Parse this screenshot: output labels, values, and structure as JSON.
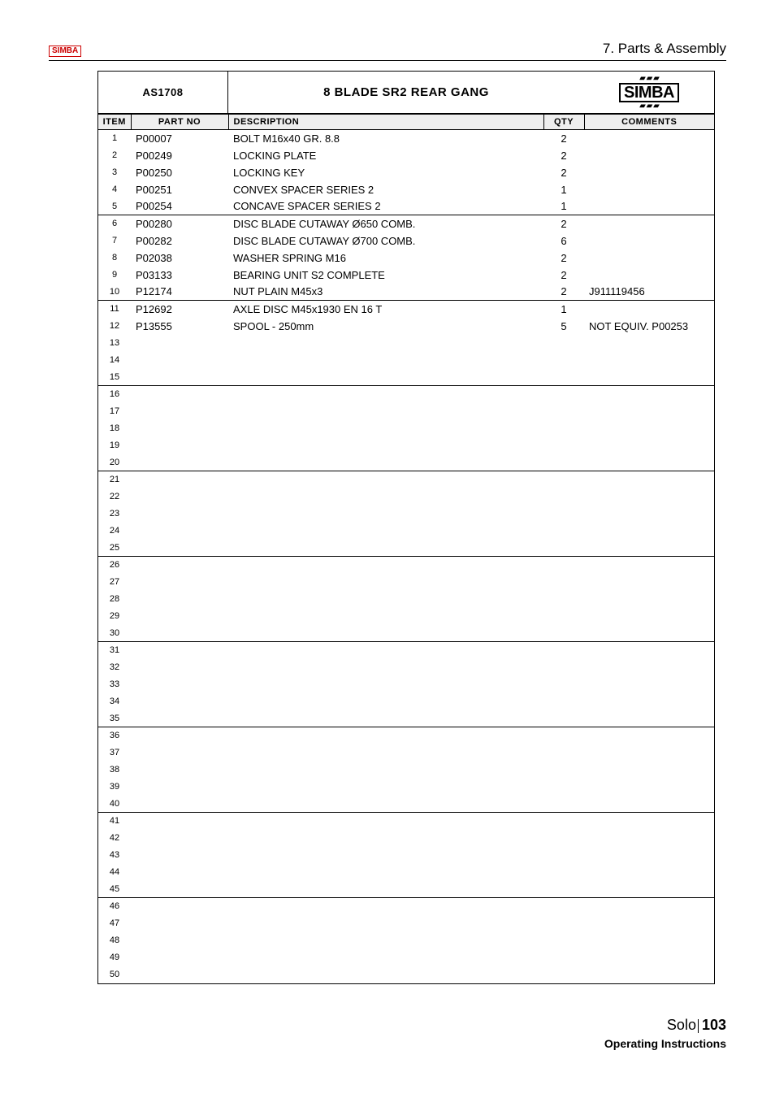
{
  "header": {
    "logo_text": "SIMBA",
    "section": "7. Parts & Assembly"
  },
  "assembly": {
    "code": "AS1708",
    "title": "8 BLADE SR2 REAR GANG",
    "brand": "SIMBA"
  },
  "columns": {
    "item": "ITEM",
    "part": "PART NO",
    "desc": "DESCRIPTION",
    "qty": "QTY",
    "comm": "COMMENTS"
  },
  "rows": [
    {
      "item": "1",
      "part": "P00007",
      "desc": "BOLT M16x40 GR. 8.8",
      "qty": "2",
      "comm": "",
      "sep": false
    },
    {
      "item": "2",
      "part": "P00249",
      "desc": "LOCKING PLATE",
      "qty": "2",
      "comm": "",
      "sep": false
    },
    {
      "item": "3",
      "part": "P00250",
      "desc": "LOCKING KEY",
      "qty": "2",
      "comm": "",
      "sep": false
    },
    {
      "item": "4",
      "part": "P00251",
      "desc": "CONVEX SPACER SERIES 2",
      "qty": "1",
      "comm": "",
      "sep": false
    },
    {
      "item": "5",
      "part": "P00254",
      "desc": "CONCAVE SPACER SERIES 2",
      "qty": "1",
      "comm": "",
      "sep": false
    },
    {
      "item": "6",
      "part": "P00280",
      "desc": "DISC BLADE CUTAWAY Ø650 COMB.",
      "qty": "2",
      "comm": "",
      "sep": true
    },
    {
      "item": "7",
      "part": "P00282",
      "desc": "DISC BLADE CUTAWAY Ø700 COMB.",
      "qty": "6",
      "comm": "",
      "sep": false
    },
    {
      "item": "8",
      "part": "P02038",
      "desc": "WASHER SPRING M16",
      "qty": "2",
      "comm": "",
      "sep": false
    },
    {
      "item": "9",
      "part": "P03133",
      "desc": "BEARING UNIT S2 COMPLETE",
      "qty": "2",
      "comm": "",
      "sep": false
    },
    {
      "item": "10",
      "part": "P12174",
      "desc": "NUT PLAIN M45x3",
      "qty": "2",
      "comm": "J911119456",
      "sep": false
    },
    {
      "item": "11",
      "part": "P12692",
      "desc": "AXLE DISC M45x1930 EN 16 T",
      "qty": "1",
      "comm": "",
      "sep": true
    },
    {
      "item": "12",
      "part": "P13555",
      "desc": "SPOOL - 250mm",
      "qty": "5",
      "comm": "NOT EQUIV. P00253",
      "sep": false
    },
    {
      "item": "13",
      "part": "",
      "desc": "",
      "qty": "",
      "comm": "",
      "sep": false
    },
    {
      "item": "14",
      "part": "",
      "desc": "",
      "qty": "",
      "comm": "",
      "sep": false
    },
    {
      "item": "15",
      "part": "",
      "desc": "",
      "qty": "",
      "comm": "",
      "sep": false
    },
    {
      "item": "16",
      "part": "",
      "desc": "",
      "qty": "",
      "comm": "",
      "sep": true
    },
    {
      "item": "17",
      "part": "",
      "desc": "",
      "qty": "",
      "comm": "",
      "sep": false
    },
    {
      "item": "18",
      "part": "",
      "desc": "",
      "qty": "",
      "comm": "",
      "sep": false
    },
    {
      "item": "19",
      "part": "",
      "desc": "",
      "qty": "",
      "comm": "",
      "sep": false
    },
    {
      "item": "20",
      "part": "",
      "desc": "",
      "qty": "",
      "comm": "",
      "sep": false
    },
    {
      "item": "21",
      "part": "",
      "desc": "",
      "qty": "",
      "comm": "",
      "sep": true
    },
    {
      "item": "22",
      "part": "",
      "desc": "",
      "qty": "",
      "comm": "",
      "sep": false
    },
    {
      "item": "23",
      "part": "",
      "desc": "",
      "qty": "",
      "comm": "",
      "sep": false
    },
    {
      "item": "24",
      "part": "",
      "desc": "",
      "qty": "",
      "comm": "",
      "sep": false
    },
    {
      "item": "25",
      "part": "",
      "desc": "",
      "qty": "",
      "comm": "",
      "sep": false
    },
    {
      "item": "26",
      "part": "",
      "desc": "",
      "qty": "",
      "comm": "",
      "sep": true
    },
    {
      "item": "27",
      "part": "",
      "desc": "",
      "qty": "",
      "comm": "",
      "sep": false
    },
    {
      "item": "28",
      "part": "",
      "desc": "",
      "qty": "",
      "comm": "",
      "sep": false
    },
    {
      "item": "29",
      "part": "",
      "desc": "",
      "qty": "",
      "comm": "",
      "sep": false
    },
    {
      "item": "30",
      "part": "",
      "desc": "",
      "qty": "",
      "comm": "",
      "sep": false
    },
    {
      "item": "31",
      "part": "",
      "desc": "",
      "qty": "",
      "comm": "",
      "sep": true
    },
    {
      "item": "32",
      "part": "",
      "desc": "",
      "qty": "",
      "comm": "",
      "sep": false
    },
    {
      "item": "33",
      "part": "",
      "desc": "",
      "qty": "",
      "comm": "",
      "sep": false
    },
    {
      "item": "34",
      "part": "",
      "desc": "",
      "qty": "",
      "comm": "",
      "sep": false
    },
    {
      "item": "35",
      "part": "",
      "desc": "",
      "qty": "",
      "comm": "",
      "sep": false
    },
    {
      "item": "36",
      "part": "",
      "desc": "",
      "qty": "",
      "comm": "",
      "sep": true
    },
    {
      "item": "37",
      "part": "",
      "desc": "",
      "qty": "",
      "comm": "",
      "sep": false
    },
    {
      "item": "38",
      "part": "",
      "desc": "",
      "qty": "",
      "comm": "",
      "sep": false
    },
    {
      "item": "39",
      "part": "",
      "desc": "",
      "qty": "",
      "comm": "",
      "sep": false
    },
    {
      "item": "40",
      "part": "",
      "desc": "",
      "qty": "",
      "comm": "",
      "sep": false
    },
    {
      "item": "41",
      "part": "",
      "desc": "",
      "qty": "",
      "comm": "",
      "sep": true
    },
    {
      "item": "42",
      "part": "",
      "desc": "",
      "qty": "",
      "comm": "",
      "sep": false
    },
    {
      "item": "43",
      "part": "",
      "desc": "",
      "qty": "",
      "comm": "",
      "sep": false
    },
    {
      "item": "44",
      "part": "",
      "desc": "",
      "qty": "",
      "comm": "",
      "sep": false
    },
    {
      "item": "45",
      "part": "",
      "desc": "",
      "qty": "",
      "comm": "",
      "sep": false
    },
    {
      "item": "46",
      "part": "",
      "desc": "",
      "qty": "",
      "comm": "",
      "sep": true
    },
    {
      "item": "47",
      "part": "",
      "desc": "",
      "qty": "",
      "comm": "",
      "sep": false
    },
    {
      "item": "48",
      "part": "",
      "desc": "",
      "qty": "",
      "comm": "",
      "sep": false
    },
    {
      "item": "49",
      "part": "",
      "desc": "",
      "qty": "",
      "comm": "",
      "sep": false
    },
    {
      "item": "50",
      "part": "",
      "desc": "",
      "qty": "",
      "comm": "",
      "sep": false
    }
  ],
  "footer": {
    "product": "Solo",
    "page": "103",
    "label": "Operating Instructions"
  }
}
